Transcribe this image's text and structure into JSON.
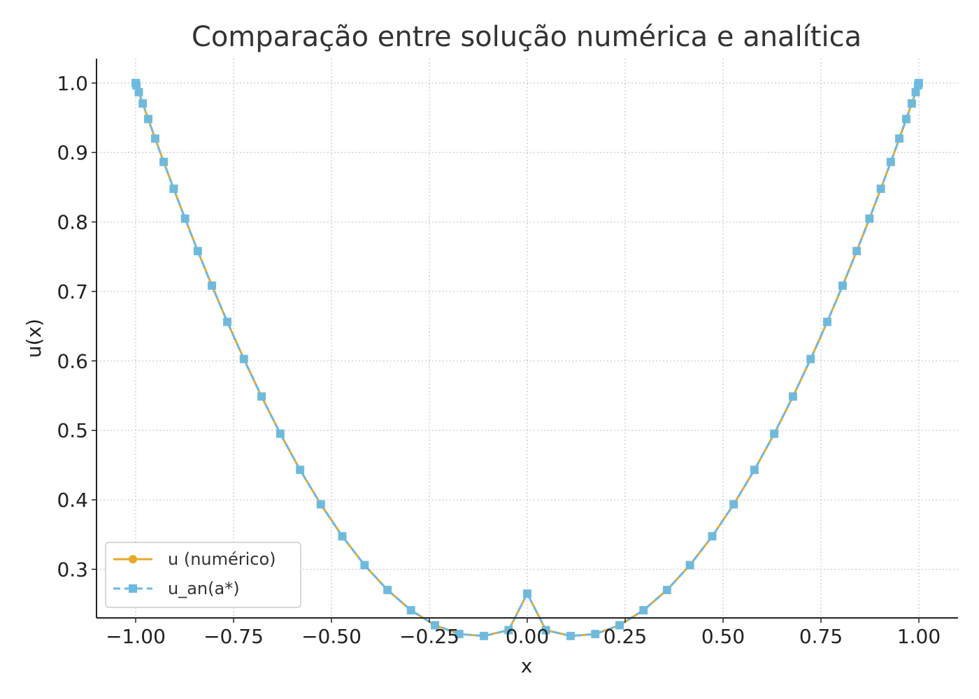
{
  "chart_data": {
    "type": "line",
    "title": "Comparação entre solução numérica e analítica",
    "xlabel": "x",
    "ylabel": "u(x)",
    "xlim": [
      -1.1,
      1.1
    ],
    "ylim": [
      0.23,
      1.035
    ],
    "x_ticks": [
      -1.0,
      -0.75,
      -0.5,
      -0.25,
      0.0,
      0.25,
      0.5,
      0.75,
      1.0
    ],
    "x_tick_labels": [
      "−1.00",
      "−0.75",
      "−0.50",
      "−0.25",
      "0.00",
      "0.25",
      "0.50",
      "0.75",
      "1.00"
    ],
    "y_ticks": [
      0.3,
      0.4,
      0.5,
      0.6,
      0.7,
      0.8,
      0.9,
      1.0
    ],
    "y_tick_labels": [
      "0.3",
      "0.4",
      "0.5",
      "0.6",
      "0.7",
      "0.8",
      "0.9",
      "1.0"
    ],
    "grid": true,
    "legend_position": "lower-left",
    "x": [
      -1.0,
      -0.998,
      -0.992,
      -0.9819,
      -0.9679,
      -0.9501,
      -0.9284,
      -0.9029,
      -0.8738,
      -0.8413,
      -0.8053,
      -0.766,
      -0.7237,
      -0.6785,
      -0.6306,
      -0.5801,
      -0.5272,
      -0.4723,
      -0.4154,
      -0.3569,
      -0.2969,
      -0.2357,
      -0.1736,
      -0.1108,
      -0.0476,
      0.0,
      0.0476,
      0.1108,
      0.1736,
      0.2357,
      0.2969,
      0.3569,
      0.4154,
      0.4723,
      0.5272,
      0.5801,
      0.6306,
      0.6785,
      0.7237,
      0.766,
      0.8053,
      0.8413,
      0.8738,
      0.9029,
      0.9284,
      0.9501,
      0.9679,
      0.9819,
      0.992,
      0.998,
      1.0
    ],
    "series": [
      {
        "name": "u (numérico)",
        "color": "#E8A92B",
        "style": "solid",
        "marker": "circle",
        "values": [
          1.0,
          0.9967,
          0.9869,
          0.9706,
          0.9482,
          0.92,
          0.8864,
          0.8478,
          0.8048,
          0.7581,
          0.7083,
          0.6562,
          0.6027,
          0.5487,
          0.4952,
          0.4431,
          0.3935,
          0.3475,
          0.306,
          0.2702,
          0.241,
          0.2195,
          0.2068,
          0.204,
          0.2124,
          0.265,
          0.2124,
          0.204,
          0.2068,
          0.2195,
          0.241,
          0.2702,
          0.306,
          0.3475,
          0.3935,
          0.4431,
          0.4952,
          0.5487,
          0.6027,
          0.6562,
          0.7083,
          0.7581,
          0.8048,
          0.8478,
          0.8864,
          0.92,
          0.9482,
          0.9706,
          0.9869,
          0.9967,
          1.0
        ]
      },
      {
        "name": "u_an(a*)",
        "color": "#6CB9E0",
        "style": "dashed",
        "marker": "square",
        "values": [
          1.0,
          0.9967,
          0.9869,
          0.9706,
          0.9482,
          0.92,
          0.8864,
          0.8478,
          0.8048,
          0.7581,
          0.7083,
          0.6562,
          0.6027,
          0.5487,
          0.4952,
          0.4431,
          0.3935,
          0.3475,
          0.306,
          0.2702,
          0.241,
          0.2195,
          0.2068,
          0.204,
          0.2124,
          0.265,
          0.2124,
          0.204,
          0.2068,
          0.2195,
          0.241,
          0.2702,
          0.306,
          0.3475,
          0.3935,
          0.4431,
          0.4952,
          0.5487,
          0.6027,
          0.6562,
          0.7083,
          0.7581,
          0.8048,
          0.8478,
          0.8864,
          0.92,
          0.9482,
          0.9706,
          0.9869,
          0.9967,
          1.0
        ]
      }
    ]
  }
}
